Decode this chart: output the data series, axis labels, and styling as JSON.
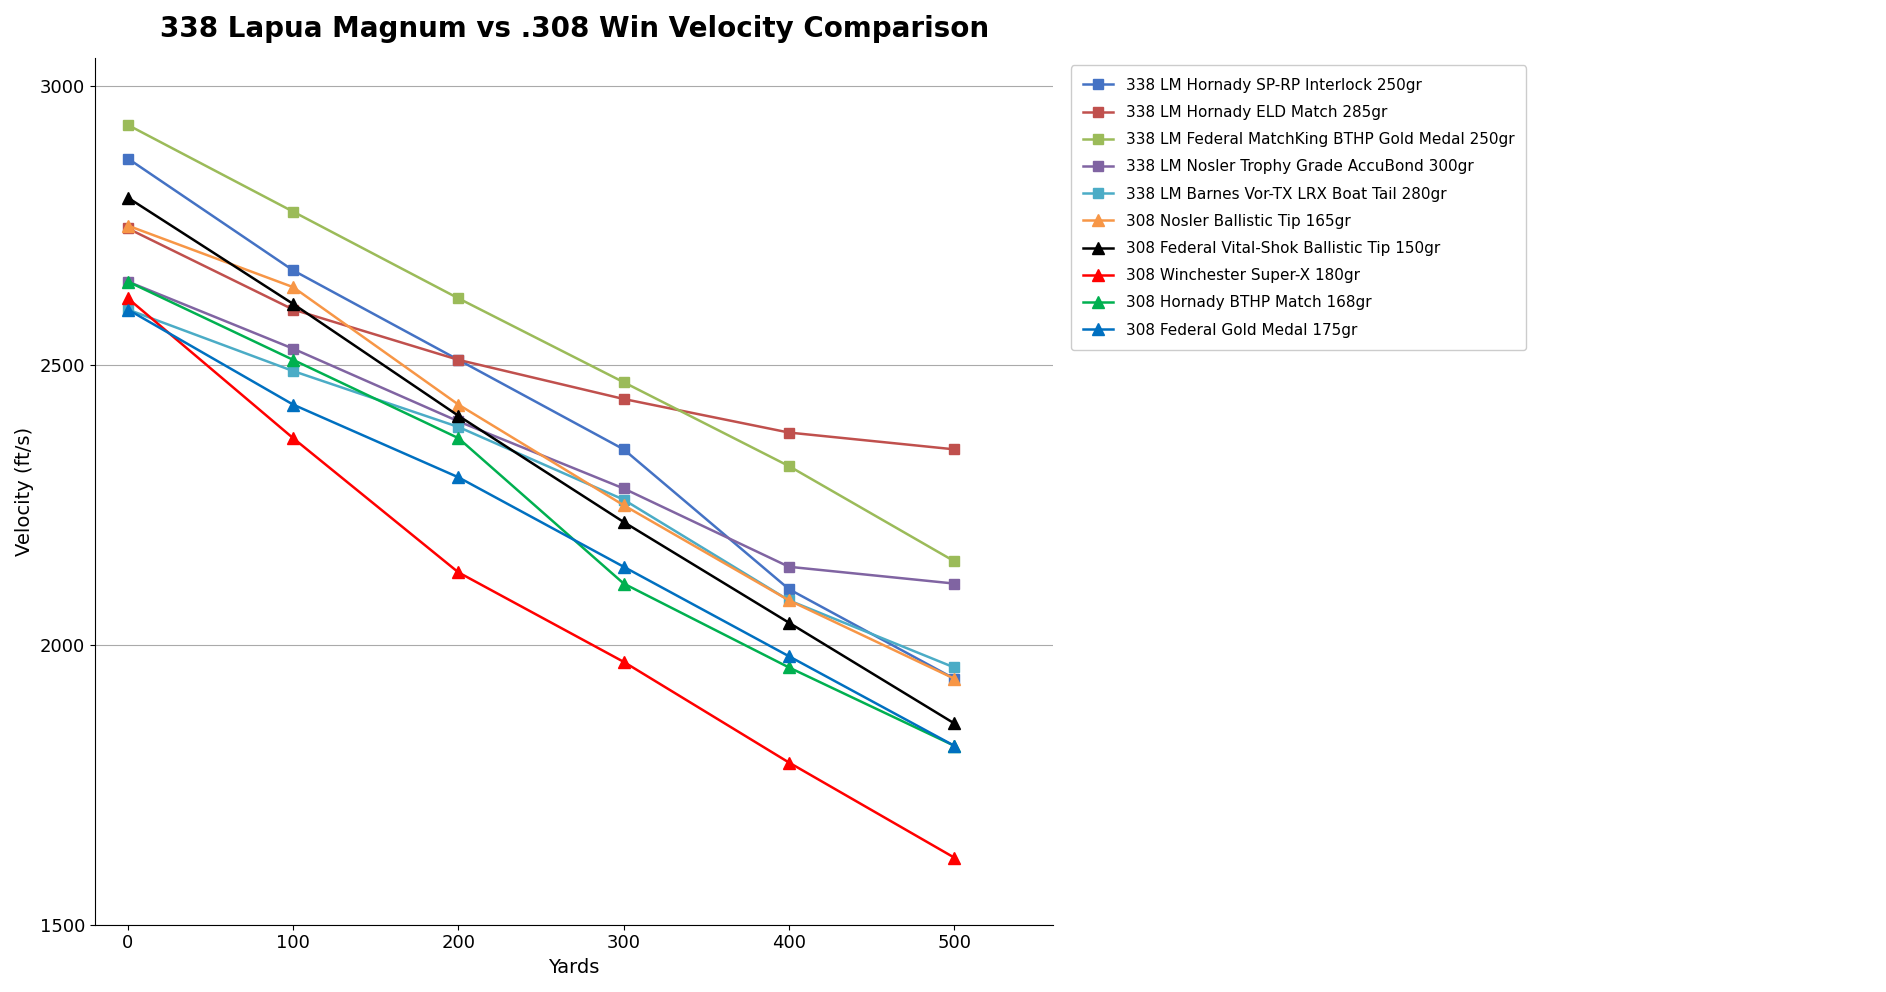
{
  "title": "338 Lapua Magnum vs .308 Win Velocity Comparison",
  "xlabel": "Yards",
  "ylabel": "Velocity (ft/s)",
  "xlim": [
    -20,
    560
  ],
  "ylim": [
    1500,
    3050
  ],
  "yticks": [
    1500,
    2000,
    2500,
    3000
  ],
  "xticks": [
    0,
    100,
    200,
    300,
    400,
    500
  ],
  "yards": [
    0,
    100,
    200,
    300,
    400,
    500
  ],
  "series": [
    {
      "label": "338 LM Hornady SP-RP Interlock 250gr",
      "color": "#4472C4",
      "marker": "s",
      "markersize": 7,
      "values": [
        2870,
        2670,
        2510,
        2350,
        2100,
        1940
      ]
    },
    {
      "label": "338 LM Hornady ELD Match 285gr",
      "color": "#C0504D",
      "marker": "s",
      "markersize": 7,
      "values": [
        2745,
        2600,
        2510,
        2440,
        2380,
        2350
      ]
    },
    {
      "label": "338 LM Federal MatchKing BTHP Gold Medal 250gr",
      "color": "#9BBB59",
      "marker": "s",
      "markersize": 7,
      "values": [
        2930,
        2775,
        2620,
        2470,
        2320,
        2150
      ]
    },
    {
      "label": "338 LM Nosler Trophy Grade AccuBond 300gr",
      "color": "#8064A2",
      "marker": "s",
      "markersize": 7,
      "values": [
        2650,
        2530,
        2400,
        2280,
        2140,
        2110
      ]
    },
    {
      "label": "338 LM Barnes Vor-TX LRX Boat Tail 280gr",
      "color": "#4BACC6",
      "marker": "s",
      "markersize": 7,
      "values": [
        2600,
        2490,
        2390,
        2260,
        2080,
        1960
      ]
    },
    {
      "label": "308 Nosler Ballistic Tip 165gr",
      "color": "#F79646",
      "marker": "^",
      "markersize": 8,
      "values": [
        2750,
        2640,
        2430,
        2250,
        2080,
        1940
      ]
    },
    {
      "label": "308 Federal Vital-Shok Ballistic Tip 150gr",
      "color": "#000000",
      "marker": "^",
      "markersize": 8,
      "values": [
        2800,
        2610,
        2410,
        2220,
        2040,
        1860
      ]
    },
    {
      "label": "308 Winchester Super-X 180gr",
      "color": "#FF0000",
      "marker": "^",
      "markersize": 8,
      "values": [
        2620,
        2370,
        2130,
        1970,
        1790,
        1620
      ]
    },
    {
      "label": "308 Hornady BTHP Match 168gr",
      "color": "#00B050",
      "marker": "^",
      "markersize": 8,
      "values": [
        2650,
        2510,
        2370,
        2110,
        1960,
        1820
      ]
    },
    {
      "label": "308 Federal Gold Medal 175gr",
      "color": "#0070C0",
      "marker": "^",
      "markersize": 8,
      "values": [
        2600,
        2430,
        2300,
        2140,
        1980,
        1820
      ]
    }
  ],
  "background_color": "#FFFFFF",
  "grid_color": "#AAAAAA",
  "title_fontsize": 20,
  "axis_label_fontsize": 14,
  "tick_fontsize": 13,
  "legend_fontsize": 11,
  "linewidth": 1.8
}
